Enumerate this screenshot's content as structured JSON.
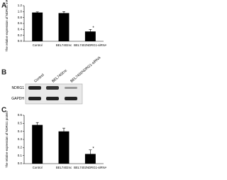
{
  "chart_data": [
    {
      "type": "bar",
      "panel": "A",
      "ylabel": "The relative expression of NDRG1 mRNA",
      "categories": [
        "Control",
        "BEL7402nc",
        "BEL7402NDRG1-siRNA"
      ],
      "values": [
        0.97,
        0.95,
        0.33
      ],
      "errors": [
        0.02,
        0.05,
        0.07
      ],
      "significance": [
        null,
        null,
        "*"
      ],
      "color": "#000000",
      "ylim": [
        0,
        1.2
      ],
      "yticks": [
        {
          "value": 0,
          "label": "0.0"
        },
        0.2,
        0.4,
        0.6,
        0.8,
        {
          "value": 1,
          "label": "1.0"
        },
        1.2
      ]
    },
    {
      "type": "bar",
      "panel": "C",
      "ylabel": "The relative expression of NDRG1 protein",
      "categories": [
        "Control",
        "BEL7402nc",
        "BEL7402NDRG1-siRNA"
      ],
      "values": [
        0.48,
        0.4,
        0.12
      ],
      "errors": [
        0.03,
        0.04,
        0.05
      ],
      "significance": [
        null,
        null,
        "*"
      ],
      "color": "#000000",
      "ylim": [
        0,
        0.6
      ],
      "yticks": [
        {
          "value": 0,
          "label": "0.0"
        },
        0.1,
        0.2,
        0.3,
        0.4,
        0.5,
        0.6
      ]
    }
  ],
  "blot": {
    "panel": "B",
    "lanes": [
      "Control",
      "BEL7402nc",
      "BEL7402NDRG1-siRNA"
    ],
    "rows": [
      "NDRG1",
      "GAPDH"
    ]
  }
}
